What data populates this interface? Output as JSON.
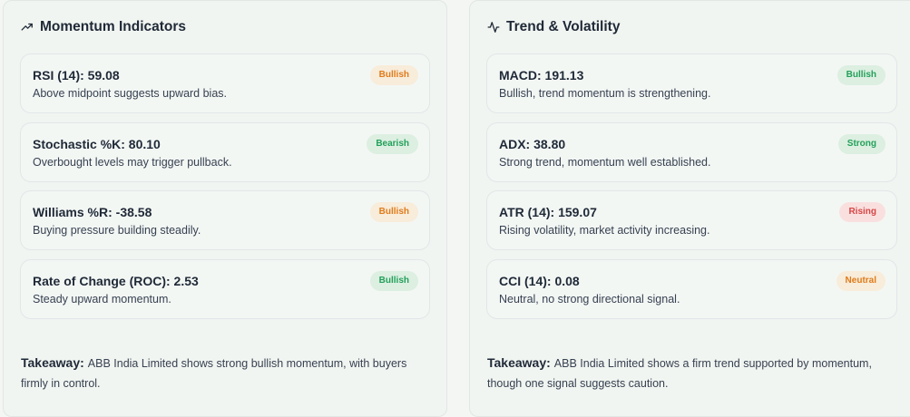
{
  "momentum": {
    "title": "Momentum Indicators",
    "icon": "trending-up-icon",
    "items": [
      {
        "title": "RSI (14): 59.08",
        "desc": "Above midpoint suggests upward bias.",
        "badge": "Bullish",
        "tone": "orange"
      },
      {
        "title": "Stochastic %K: 80.10",
        "desc": "Overbought levels may trigger pullback.",
        "badge": "Bearish",
        "tone": "green"
      },
      {
        "title": "Williams %R: -38.58",
        "desc": "Buying pressure building steadily.",
        "badge": "Bullish",
        "tone": "orange"
      },
      {
        "title": "Rate of Change (ROC): 2.53",
        "desc": "Steady upward momentum.",
        "badge": "Bullish",
        "tone": "green"
      }
    ],
    "takeaway_label": "Takeaway:",
    "takeaway": "ABB India Limited shows strong bullish momentum, with buyers firmly in control."
  },
  "trend": {
    "title": "Trend & Volatility",
    "icon": "activity-icon",
    "items": [
      {
        "title": "MACD: 191.13",
        "desc": "Bullish, trend momentum is strengthening.",
        "badge": "Bullish",
        "tone": "green"
      },
      {
        "title": "ADX: 38.80",
        "desc": "Strong trend, momentum well established.",
        "badge": "Strong",
        "tone": "green"
      },
      {
        "title": "ATR (14): 159.07",
        "desc": "Rising volatility, market activity increasing.",
        "badge": "Rising",
        "tone": "red"
      },
      {
        "title": "CCI (14): 0.08",
        "desc": "Neutral, no strong directional signal.",
        "badge": "Neutral",
        "tone": "orange"
      }
    ],
    "takeaway_label": "Takeaway:",
    "takeaway": "ABB India Limited shows a firm trend supported by momentum, though one signal suggests caution."
  },
  "colors": {
    "orange": "#e07b1a",
    "green": "#23a05a",
    "red": "#d64545"
  }
}
